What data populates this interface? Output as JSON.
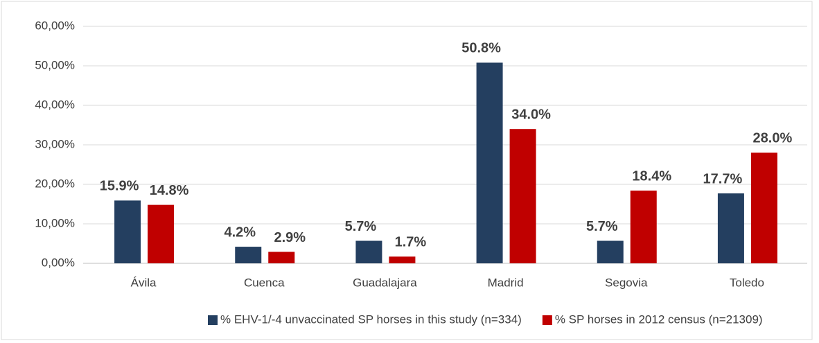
{
  "chart_data": {
    "type": "bar",
    "categories": [
      "Ávila",
      "Cuenca",
      "Guadalajara",
      "Madrid",
      "Segovia",
      "Toledo"
    ],
    "series": [
      {
        "name": "% EHV-1/-4 unvaccinated SP horses in this study (n=334)",
        "color": "#243f60",
        "values": [
          15.9,
          4.2,
          5.7,
          50.8,
          5.7,
          17.7
        ],
        "value_labels": [
          "15.9%",
          "4.2%",
          "5.7%",
          "50.8%",
          "5.7%",
          "17.7%"
        ]
      },
      {
        "name": "%  SP horses in 2012 census (n=21309)",
        "color": "#c00000",
        "values": [
          14.8,
          2.9,
          1.7,
          34.0,
          18.4,
          28.0
        ],
        "value_labels": [
          "14.8%",
          "2.9%",
          "1.7%",
          "34.0%",
          "18.4%",
          "28.0%"
        ]
      }
    ],
    "ylim": [
      0,
      60
    ],
    "yticks": [
      {
        "value": 0,
        "label": "0,00%"
      },
      {
        "value": 10,
        "label": "10,00%"
      },
      {
        "value": 20,
        "label": "20,00%"
      },
      {
        "value": 30,
        "label": "30,00%"
      },
      {
        "value": 40,
        "label": "40,00%"
      },
      {
        "value": 50,
        "label": "50,00%"
      },
      {
        "value": 60,
        "label": "60,00%"
      }
    ],
    "grid": true,
    "legend": "bottom"
  }
}
